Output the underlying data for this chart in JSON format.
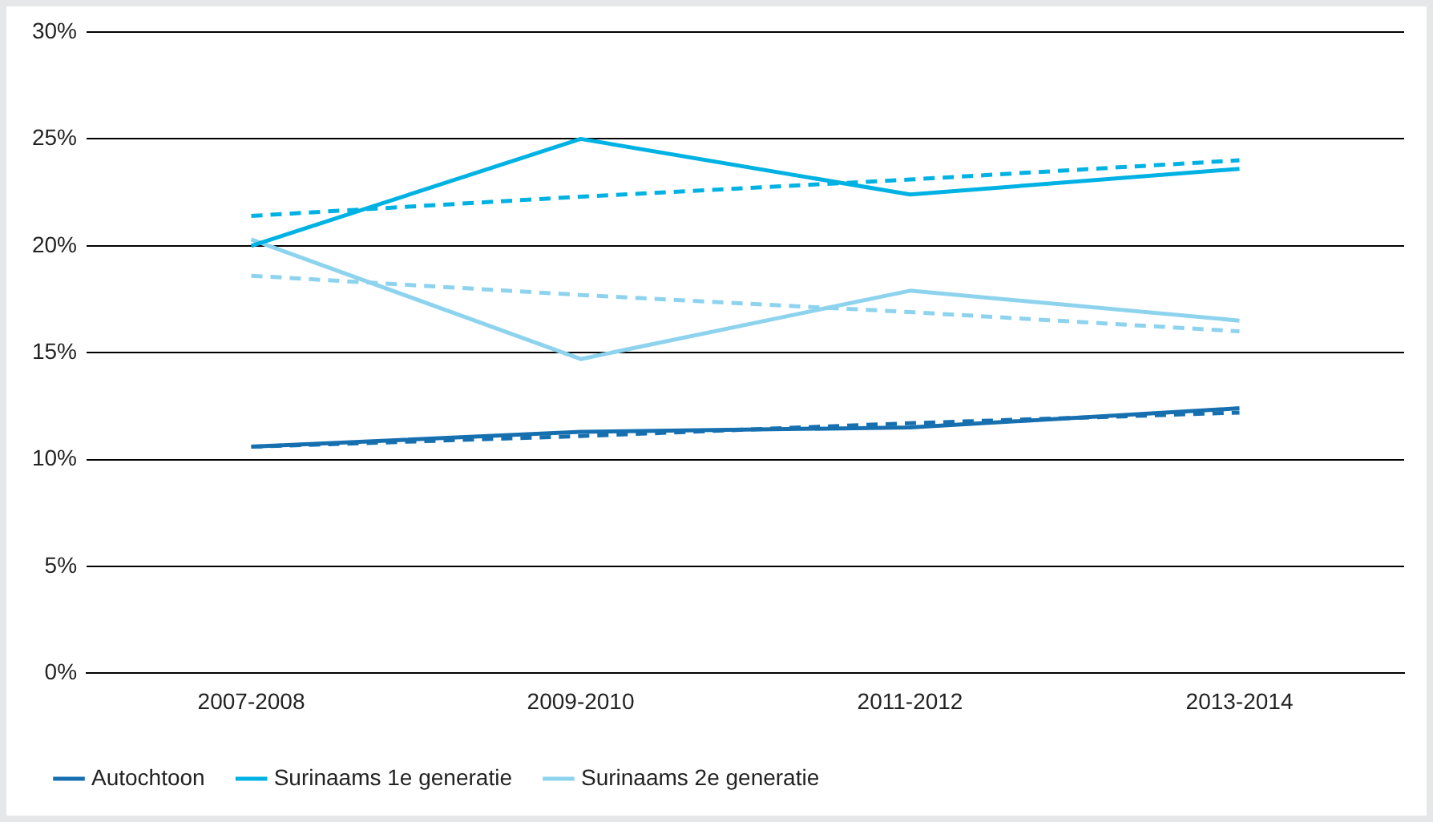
{
  "chart_data": {
    "type": "line",
    "categories": [
      "2007-2008",
      "2009-2010",
      "2011-2012",
      "2013-2014"
    ],
    "series": [
      {
        "name": "Autochtoon",
        "color": "#1670b0",
        "values": [
          10.6,
          11.3,
          11.5,
          12.4
        ]
      },
      {
        "name": "Surinaams 1e generatie",
        "color": "#00b2e3",
        "values": [
          20.0,
          25.0,
          22.4,
          23.6
        ]
      },
      {
        "name": "Surinaams 2e generatie",
        "color": "#8ed3ee",
        "values": [
          20.3,
          14.7,
          17.9,
          16.5
        ]
      },
      {
        "type": "line",
        "line_style": "dashed",
        "color": "#1670b0",
        "values": [
          10.6,
          11.1,
          11.7,
          12.2
        ]
      },
      {
        "type": "line",
        "line_style": "dashed",
        "color": "#00b2e3",
        "values": [
          21.4,
          22.3,
          23.1,
          24.0
        ]
      },
      {
        "type": "line",
        "line_style": "dashed",
        "color": "#8ed3ee",
        "values": [
          18.6,
          17.7,
          16.9,
          16.0
        ]
      }
    ],
    "ylim": [
      0,
      30
    ],
    "yticks": [
      {
        "value": 0,
        "label": "0%"
      },
      {
        "value": 5,
        "label": "5%"
      },
      {
        "value": 10,
        "label": "10%"
      },
      {
        "value": 15,
        "label": "15%"
      },
      {
        "value": 20,
        "label": "20%"
      },
      {
        "value": 25,
        "label": "25%"
      },
      {
        "value": 30,
        "label": "30%"
      }
    ],
    "grid": "y",
    "legend": "bottom",
    "marker": "none"
  }
}
